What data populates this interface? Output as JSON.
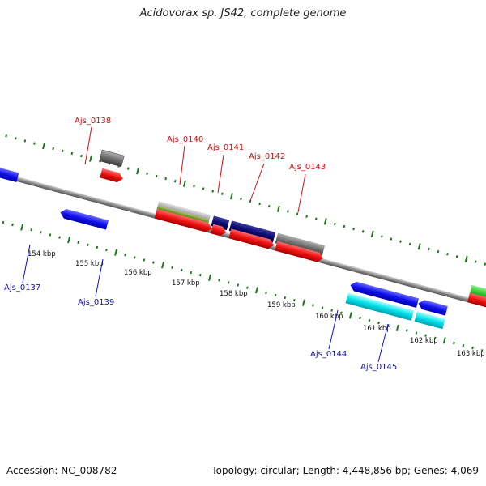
{
  "title": "Acidovorax sp. JS42, complete genome",
  "footer": {
    "accession": "Accession: NC_008782",
    "summary": "Topology: circular; Length: 4,448,856 bp; Genes: 4,069"
  },
  "scale_labels": [
    "154 kbp",
    "155 kbp",
    "156 kbp",
    "157 kbp",
    "158 kbp",
    "159 kbp",
    "160 kbp",
    "161 kbp",
    "162 kbp",
    "163 kbp"
  ],
  "gene_labels_forward": [
    "Ajs_0138",
    "Ajs_0140",
    "Ajs_0141",
    "Ajs_0142",
    "Ajs_0143"
  ],
  "gene_labels_reverse": [
    "Ajs_0137",
    "Ajs_0139",
    "Ajs_0144",
    "Ajs_0145"
  ],
  "colors": {
    "forward_label": "#d01010",
    "reverse_label": "#1010c0",
    "tick": "#1a7a1a",
    "cds_forward": "#ee1111",
    "cds_reverse": "#1111ee",
    "gene_gray": "#707070",
    "gene_navy": "#0a0a70",
    "gene_cyan": "#00e0e8",
    "gene_green": "#33cc33",
    "gene_olive": "#6a9a1a"
  }
}
